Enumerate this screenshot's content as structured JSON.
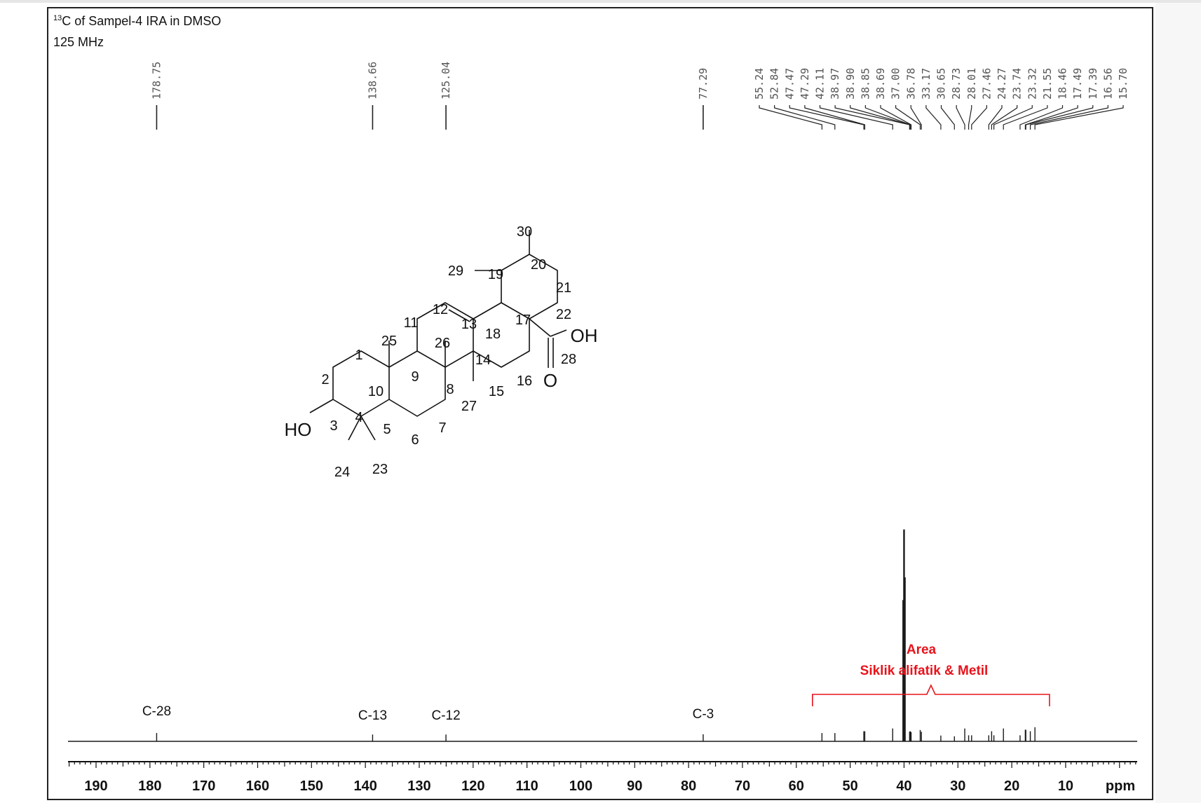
{
  "header": {
    "isotope_sup": "13",
    "title_rest": "C of Sampel-4 IRA in DMSO",
    "frequency": "125 MHz"
  },
  "colors": {
    "spectrum": "#1a1a1a",
    "annotation": "#e8131b",
    "peak_label_text": "#555555"
  },
  "chart_data": {
    "type": "line",
    "title": "",
    "xlabel": "ppm",
    "x_reversed": true,
    "xlim": [
      195.5,
      -3.5
    ],
    "x_ticks": [
      190,
      180,
      170,
      160,
      150,
      140,
      130,
      120,
      110,
      100,
      90,
      80,
      70,
      60,
      50,
      40,
      30,
      20,
      10
    ],
    "y_axis_shown": false,
    "peak_labels": [
      "178.75",
      "138.66",
      "125.04",
      "77.29",
      "55.24",
      "52.84",
      "47.47",
      "47.29",
      "42.11",
      "38.97",
      "38.90",
      "38.85",
      "38.69",
      "37.00",
      "36.78",
      "33.17",
      "30.65",
      "28.73",
      "28.01",
      "27.46",
      "24.27",
      "23.74",
      "23.32",
      "21.55",
      "18.46",
      "17.49",
      "17.39",
      "16.56",
      "15.70"
    ],
    "peaks": [
      {
        "ppm": 178.75,
        "height": 0.33
      },
      {
        "ppm": 138.66,
        "height": 0.27
      },
      {
        "ppm": 125.04,
        "height": 0.27
      },
      {
        "ppm": 77.29,
        "height": 0.28
      },
      {
        "ppm": 55.24,
        "height": 0.33
      },
      {
        "ppm": 52.84,
        "height": 0.33
      },
      {
        "ppm": 47.47,
        "height": 0.4
      },
      {
        "ppm": 47.29,
        "height": 0.4
      },
      {
        "ppm": 42.11,
        "height": 0.51
      },
      {
        "ppm": 40.0,
        "height": 8.4
      },
      {
        "ppm": 39.85,
        "height": 6.5
      },
      {
        "ppm": 40.15,
        "height": 5.6
      },
      {
        "ppm": 38.97,
        "height": 0.38
      },
      {
        "ppm": 38.9,
        "height": 0.38
      },
      {
        "ppm": 38.85,
        "height": 0.4
      },
      {
        "ppm": 38.69,
        "height": 0.37
      },
      {
        "ppm": 37.0,
        "height": 0.45
      },
      {
        "ppm": 36.78,
        "height": 0.38
      },
      {
        "ppm": 33.17,
        "height": 0.23
      },
      {
        "ppm": 30.65,
        "height": 0.2
      },
      {
        "ppm": 28.73,
        "height": 0.51
      },
      {
        "ppm": 28.01,
        "height": 0.24
      },
      {
        "ppm": 27.46,
        "height": 0.24
      },
      {
        "ppm": 24.27,
        "height": 0.24
      },
      {
        "ppm": 23.74,
        "height": 0.4
      },
      {
        "ppm": 23.32,
        "height": 0.24
      },
      {
        "ppm": 21.55,
        "height": 0.51
      },
      {
        "ppm": 18.46,
        "height": 0.24
      },
      {
        "ppm": 17.49,
        "height": 0.46
      },
      {
        "ppm": 17.39,
        "height": 0.46
      },
      {
        "ppm": 16.56,
        "height": 0.4
      },
      {
        "ppm": 15.7,
        "height": 0.56
      }
    ],
    "assignments": [
      {
        "label": "C-28",
        "ppm": 178.75
      },
      {
        "label": "C-13",
        "ppm": 138.66
      },
      {
        "label": "C-12",
        "ppm": 125.04
      },
      {
        "label": "C-3",
        "ppm": 77.29
      }
    ],
    "region_annotation": {
      "line1": "Area",
      "line2": "Siklik alifatik & Metil",
      "ppm_range": [
        57,
        13
      ]
    }
  },
  "structure": {
    "atom_labels": [
      "30",
      "29",
      "19",
      "20",
      "21",
      "12",
      "22",
      "11",
      "13",
      "17",
      "18",
      "25",
      "26",
      "1",
      "14",
      "28",
      "2",
      "9",
      "16",
      "10",
      "8",
      "15",
      "27",
      "3",
      "4",
      "5",
      "6",
      "7",
      "24",
      "23"
    ],
    "groups": {
      "hydroxyl": "HO",
      "acid_oh": "OH",
      "carbonyl_o": "O"
    }
  }
}
